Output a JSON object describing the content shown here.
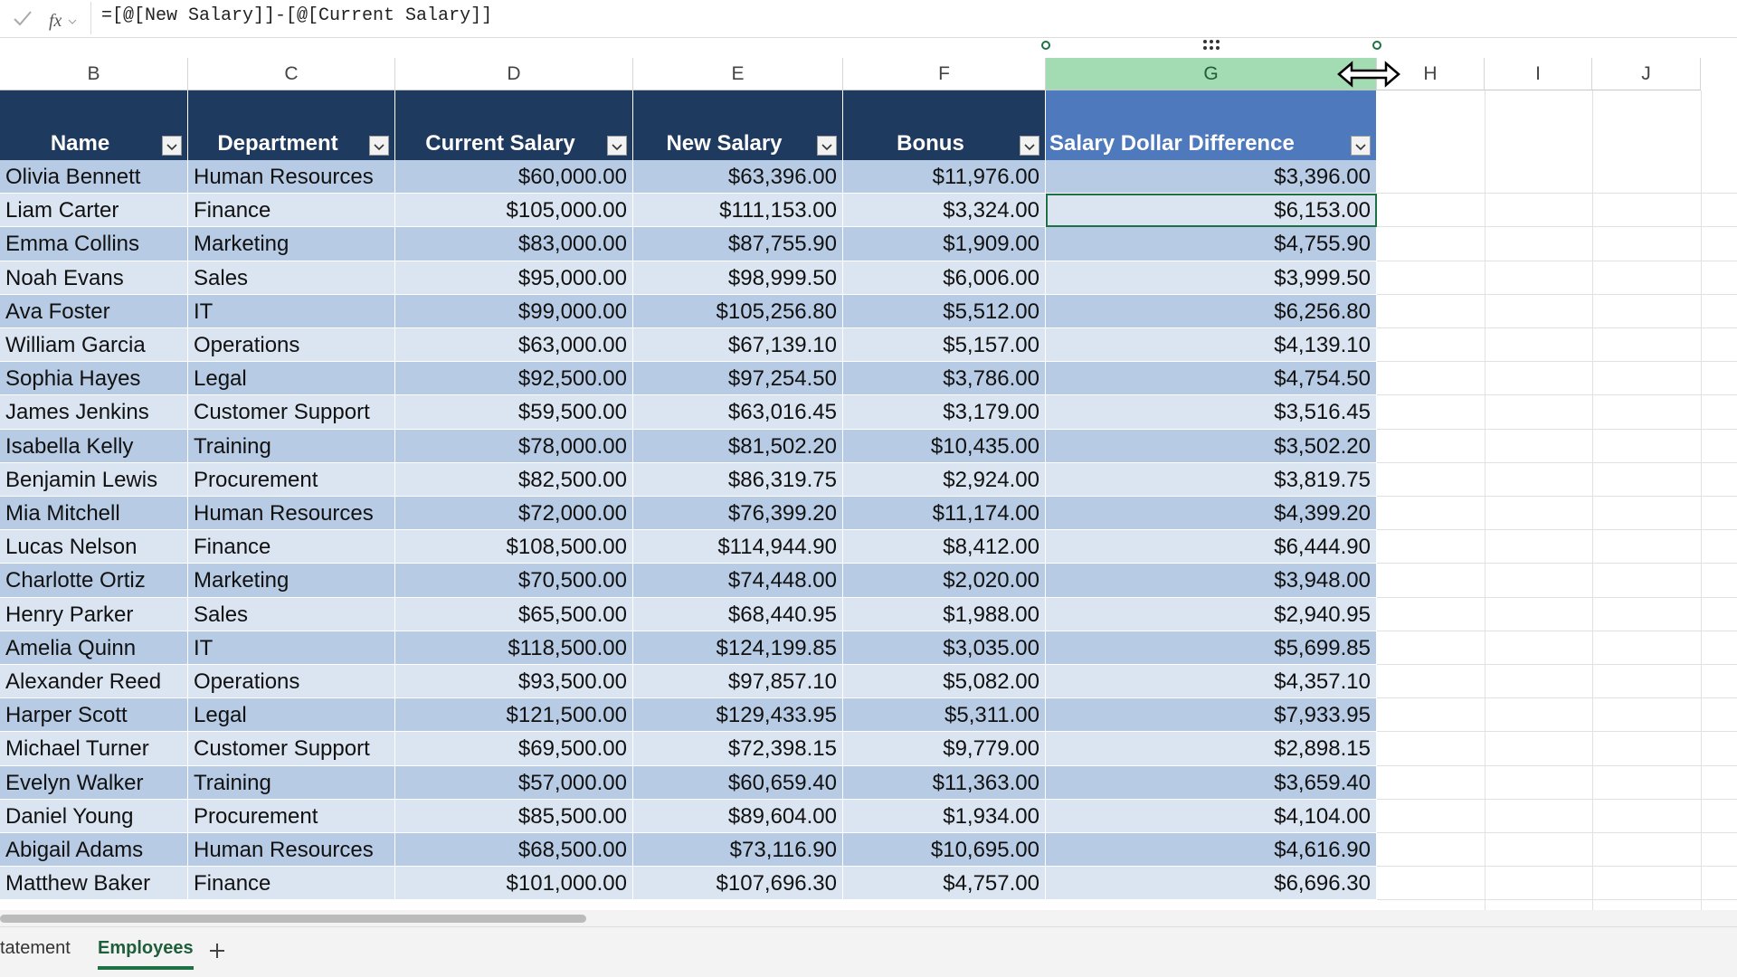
{
  "formula_bar": {
    "formula": "=[@[New Salary]]-[@[Current Salary]]"
  },
  "column_headers": [
    "B",
    "C",
    "D",
    "E",
    "F",
    "G",
    "H",
    "I",
    "J"
  ],
  "table": {
    "headers": [
      "Name",
      "Department",
      "Current Salary",
      "New Salary",
      "Bonus",
      "Salary Dollar Difference"
    ],
    "rows": [
      [
        "Olivia Bennett",
        "Human Resources",
        "$60,000.00",
        "$63,396.00",
        "$11,976.00",
        "$3,396.00"
      ],
      [
        "Liam Carter",
        "Finance",
        "$105,000.00",
        "$111,153.00",
        "$3,324.00",
        "$6,153.00"
      ],
      [
        "Emma Collins",
        "Marketing",
        "$83,000.00",
        "$87,755.90",
        "$1,909.00",
        "$4,755.90"
      ],
      [
        "Noah Evans",
        "Sales",
        "$95,000.00",
        "$98,999.50",
        "$6,006.00",
        "$3,999.50"
      ],
      [
        "Ava Foster",
        "IT",
        "$99,000.00",
        "$105,256.80",
        "$5,512.00",
        "$6,256.80"
      ],
      [
        "William Garcia",
        "Operations",
        "$63,000.00",
        "$67,139.10",
        "$5,157.00",
        "$4,139.10"
      ],
      [
        "Sophia Hayes",
        "Legal",
        "$92,500.00",
        "$97,254.50",
        "$3,786.00",
        "$4,754.50"
      ],
      [
        "James Jenkins",
        "Customer Support",
        "$59,500.00",
        "$63,016.45",
        "$3,179.00",
        "$3,516.45"
      ],
      [
        "Isabella Kelly",
        "Training",
        "$78,000.00",
        "$81,502.20",
        "$10,435.00",
        "$3,502.20"
      ],
      [
        "Benjamin Lewis",
        "Procurement",
        "$82,500.00",
        "$86,319.75",
        "$2,924.00",
        "$3,819.75"
      ],
      [
        "Mia Mitchell",
        "Human Resources",
        "$72,000.00",
        "$76,399.20",
        "$11,174.00",
        "$4,399.20"
      ],
      [
        "Lucas Nelson",
        "Finance",
        "$108,500.00",
        "$114,944.90",
        "$8,412.00",
        "$6,444.90"
      ],
      [
        "Charlotte Ortiz",
        "Marketing",
        "$70,500.00",
        "$74,448.00",
        "$2,020.00",
        "$3,948.00"
      ],
      [
        "Henry Parker",
        "Sales",
        "$65,500.00",
        "$68,440.95",
        "$1,988.00",
        "$2,940.95"
      ],
      [
        "Amelia Quinn",
        "IT",
        "$118,500.00",
        "$124,199.85",
        "$3,035.00",
        "$5,699.85"
      ],
      [
        "Alexander Reed",
        "Operations",
        "$93,500.00",
        "$97,857.10",
        "$5,082.00",
        "$4,357.10"
      ],
      [
        "Harper Scott",
        "Legal",
        "$121,500.00",
        "$129,433.95",
        "$5,311.00",
        "$7,933.95"
      ],
      [
        "Michael Turner",
        "Customer Support",
        "$69,500.00",
        "$72,398.15",
        "$9,779.00",
        "$2,898.15"
      ],
      [
        "Evelyn Walker",
        "Training",
        "$57,000.00",
        "$60,659.40",
        "$11,363.00",
        "$3,659.40"
      ],
      [
        "Daniel Young",
        "Procurement",
        "$85,500.00",
        "$89,604.00",
        "$1,934.00",
        "$4,104.00"
      ],
      [
        "Abigail Adams",
        "Human Resources",
        "$68,500.00",
        "$73,116.90",
        "$10,695.00",
        "$4,616.90"
      ],
      [
        "Matthew Baker",
        "Finance",
        "$101,000.00",
        "$107,696.30",
        "$4,757.00",
        "$6,696.30"
      ]
    ]
  },
  "sheet_tabs": [
    "tatement",
    "Employees"
  ]
}
